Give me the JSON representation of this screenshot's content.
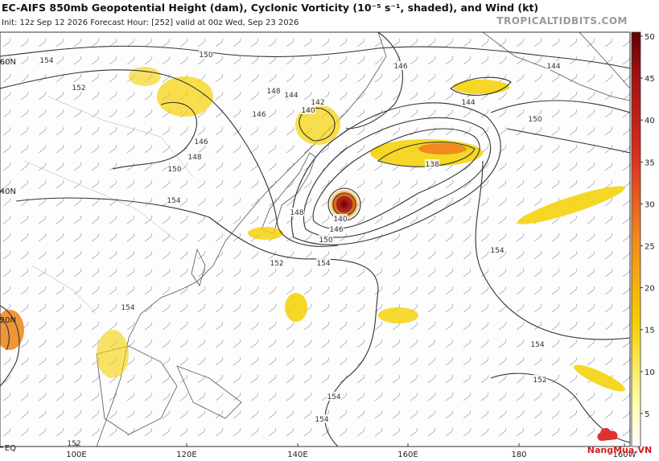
{
  "header": {
    "title": "EC-AIFS 850mb Geopotential Height (dam), Cyclonic Vorticity (10⁻⁵ s⁻¹, shaded), and Wind (kt)",
    "subtitle": "Init: 12z Sep 12 2026   Forecast Hour: [252]   valid at 00z Wed, Sep 23 2026",
    "site": "TROPICALTIDBITS.COM"
  },
  "map": {
    "lat_labels": [
      "60N",
      "40N",
      "20N",
      "EQ"
    ],
    "lon_labels": [
      "100E",
      "120E",
      "140E",
      "160E",
      "180",
      "160W"
    ],
    "contour_labels": [
      154,
      150,
      152,
      148,
      144,
      142,
      140,
      146,
      146,
      148,
      150,
      154,
      148,
      140,
      146,
      150,
      152,
      154,
      146,
      144,
      144,
      150,
      138,
      154,
      154,
      152,
      154,
      154,
      154,
      152
    ]
  },
  "colorbar": {
    "range": [
      0,
      50
    ],
    "ticks": [
      5,
      10,
      15,
      20,
      25,
      30,
      35,
      40,
      45,
      50
    ]
  },
  "watermark": "NangMua.VN"
}
